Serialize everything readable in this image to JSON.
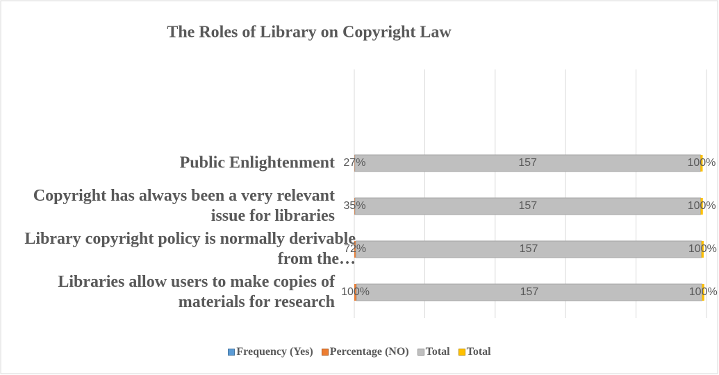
{
  "chart_data": {
    "type": "stacked_bar_horizontal",
    "title": "The Roles of Library on Copyright Law",
    "categories": [
      "Public Enlightenment",
      "Copyright has always been a very relevant issue for libraries",
      "Library copyright policy is normally derivable from the…",
      "Libraries allow users to make copies of materials for research"
    ],
    "series": [
      {
        "name": "Frequency (Yes)",
        "color": "#5b9bd5",
        "values": [
          0,
          0,
          0,
          0
        ]
      },
      {
        "name": "Percentage (NO)",
        "color": "#ed7d31",
        "values": [
          0.27,
          0.35,
          0.72,
          1
        ],
        "value_labels": [
          "27%",
          "35%",
          "72%",
          "100%"
        ]
      },
      {
        "name": "Total",
        "color": "#bfbfbf",
        "values": [
          157,
          157,
          157,
          157
        ]
      },
      {
        "name": "Total",
        "color": "#ffc000",
        "values": [
          1,
          1,
          1,
          1
        ],
        "value_labels": [
          "100%",
          "100%",
          "100%",
          "100%"
        ]
      }
    ],
    "xlim": [
      0,
      160
    ],
    "xticks": [
      0,
      32,
      64,
      96,
      128,
      160
    ],
    "grid": true,
    "legend": "bottom"
  }
}
